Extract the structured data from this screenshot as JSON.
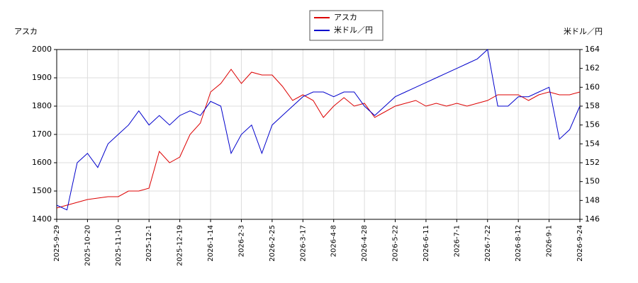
{
  "chart_data": {
    "type": "line",
    "ylabel": "アスカ",
    "y2label": "米ドル／円",
    "categories": [
      "2025-9-29",
      null,
      null,
      "2025-10-20",
      null,
      null,
      "2025-11-10",
      null,
      null,
      "2025-12-1",
      null,
      null,
      "2025-12-19",
      null,
      null,
      "2026-1-14",
      null,
      null,
      "2026-2-3",
      null,
      null,
      "2026-2-25",
      null,
      null,
      "2026-3-17",
      null,
      null,
      "2026-4-8",
      null,
      null,
      "2026-4-28",
      null,
      null,
      "2026-5-22",
      null,
      null,
      "2026-6-11",
      null,
      null,
      "2026-7-1",
      null,
      null,
      "2026-7-22",
      null,
      null,
      "2026-8-12",
      null,
      null,
      "2026-9-1",
      null,
      null,
      "2026-9-24"
    ],
    "series": [
      {
        "name": "アスカ",
        "color": "#dd0000",
        "axis": "y",
        "values": [
          1440,
          1450,
          1460,
          1470,
          1475,
          1480,
          1480,
          1500,
          1500,
          1510,
          1640,
          1600,
          1620,
          1700,
          1740,
          1850,
          1880,
          1930,
          1880,
          1920,
          1910,
          1910,
          1870,
          1820,
          1840,
          1820,
          1760,
          1800,
          1830,
          1800,
          1810,
          1760,
          1780,
          1800,
          1810,
          1820,
          1800,
          1810,
          1800,
          1810,
          1800,
          1810,
          1820,
          1840,
          1840,
          1840,
          1820,
          1840,
          1850,
          1840,
          1840,
          1850
        ]
      },
      {
        "name": "米ドル／円",
        "color": "#0000cc",
        "axis": "y2",
        "values": [
          147.5,
          147,
          152,
          153,
          151.5,
          154,
          155,
          156,
          157.5,
          156,
          157,
          156,
          157,
          157.5,
          157,
          158.5,
          158,
          153,
          155,
          156,
          153,
          156,
          157,
          158,
          159,
          159.5,
          159.5,
          159,
          159.5,
          159.5,
          158,
          157,
          158,
          159,
          159.5,
          160,
          160.5,
          161,
          161.5,
          162,
          162.5,
          163,
          164,
          158,
          158,
          159,
          159,
          159.5,
          160,
          154.5,
          155.5,
          158
        ]
      }
    ],
    "ylim": [
      1400,
      2000
    ],
    "yticks": [
      1400,
      1500,
      1600,
      1700,
      1800,
      1900,
      2000
    ],
    "y2lim": [
      146,
      164
    ],
    "y2ticks": [
      146,
      148,
      150,
      152,
      154,
      156,
      158,
      160,
      162,
      164
    ],
    "grid": true
  }
}
